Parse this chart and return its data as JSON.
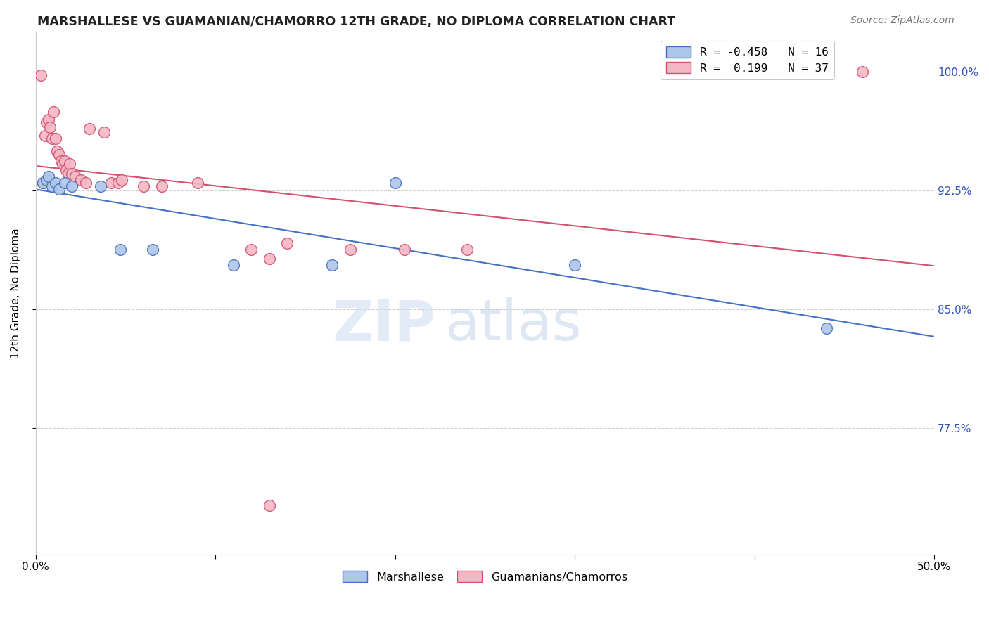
{
  "title": "MARSHALLESE VS GUAMANIAN/CHAMORRO 12TH GRADE, NO DIPLOMA CORRELATION CHART",
  "source": "Source: ZipAtlas.com",
  "ylabel": "12th Grade, No Diploma",
  "xlim": [
    0.0,
    0.5
  ],
  "ylim": [
    0.695,
    1.025
  ],
  "yticks": [
    0.775,
    0.85,
    0.925,
    1.0
  ],
  "ytick_labels": [
    "77.5%",
    "85.0%",
    "92.5%",
    "100.0%"
  ],
  "xticks": [
    0.0,
    0.1,
    0.2,
    0.3,
    0.4,
    0.5
  ],
  "xtick_labels": [
    "0.0%",
    "",
    "",
    "",
    "",
    "50.0%"
  ],
  "legend_blue_label": "Marshallese",
  "legend_pink_label": "Guamanians/Chamorros",
  "r_blue": -0.458,
  "n_blue": 16,
  "r_pink": 0.199,
  "n_pink": 37,
  "blue_color": "#aec6e8",
  "blue_line_color": "#4472c4",
  "pink_color": "#f4b8c4",
  "pink_line_color": "#d45070",
  "blue_dots": [
    [
      0.004,
      0.93
    ],
    [
      0.006,
      0.932
    ],
    [
      0.007,
      0.934
    ],
    [
      0.009,
      0.928
    ],
    [
      0.011,
      0.93
    ],
    [
      0.013,
      0.926
    ],
    [
      0.016,
      0.93
    ],
    [
      0.02,
      0.928
    ],
    [
      0.036,
      0.928
    ],
    [
      0.047,
      0.888
    ],
    [
      0.065,
      0.888
    ],
    [
      0.11,
      0.878
    ],
    [
      0.165,
      0.878
    ],
    [
      0.2,
      0.93
    ],
    [
      0.3,
      0.878
    ],
    [
      0.44,
      0.838
    ]
  ],
  "pink_dots": [
    [
      0.003,
      0.998
    ],
    [
      0.004,
      0.93
    ],
    [
      0.005,
      0.96
    ],
    [
      0.006,
      0.968
    ],
    [
      0.007,
      0.97
    ],
    [
      0.008,
      0.965
    ],
    [
      0.009,
      0.958
    ],
    [
      0.01,
      0.975
    ],
    [
      0.011,
      0.958
    ],
    [
      0.012,
      0.95
    ],
    [
      0.013,
      0.948
    ],
    [
      0.014,
      0.944
    ],
    [
      0.015,
      0.942
    ],
    [
      0.016,
      0.944
    ],
    [
      0.017,
      0.938
    ],
    [
      0.018,
      0.936
    ],
    [
      0.019,
      0.942
    ],
    [
      0.02,
      0.936
    ],
    [
      0.022,
      0.934
    ],
    [
      0.025,
      0.932
    ],
    [
      0.028,
      0.93
    ],
    [
      0.03,
      0.964
    ],
    [
      0.038,
      0.962
    ],
    [
      0.042,
      0.93
    ],
    [
      0.046,
      0.93
    ],
    [
      0.048,
      0.932
    ],
    [
      0.06,
      0.928
    ],
    [
      0.07,
      0.928
    ],
    [
      0.09,
      0.93
    ],
    [
      0.12,
      0.888
    ],
    [
      0.13,
      0.882
    ],
    [
      0.14,
      0.892
    ],
    [
      0.175,
      0.888
    ],
    [
      0.205,
      0.888
    ],
    [
      0.24,
      0.888
    ],
    [
      0.13,
      0.726
    ],
    [
      0.46,
      1.0
    ]
  ],
  "watermark_zip": "ZIP",
  "watermark_atlas": "atlas",
  "background_color": "#ffffff",
  "grid_color": "#d0d0d0"
}
